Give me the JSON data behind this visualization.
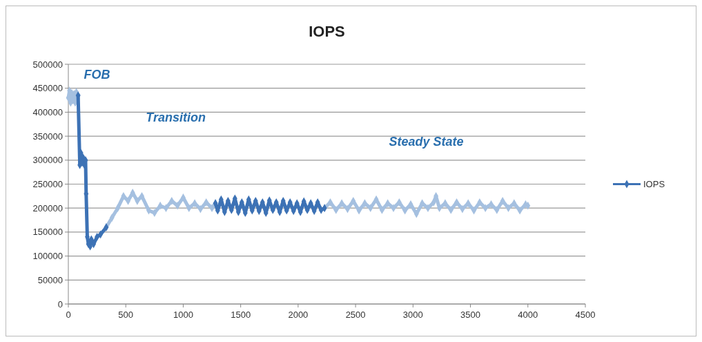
{
  "chart_data": {
    "type": "line",
    "title": "IOPS",
    "marker": "diamond",
    "line_style": "solid",
    "grid": "y",
    "legend": "right",
    "xlim": [
      0,
      4500
    ],
    "xticks": [
      0,
      500,
      1000,
      1500,
      2000,
      2500,
      3000,
      3500,
      4000,
      4500
    ],
    "ylim": [
      0,
      500000
    ],
    "yticks": [
      0,
      50000,
      100000,
      150000,
      200000,
      250000,
      300000,
      350000,
      400000,
      450000,
      500000
    ],
    "annotations": [
      "FOB",
      "Transition",
      "Steady State"
    ],
    "series": [
      {
        "color": "#a5c0e0",
        "x": [
          0,
          10,
          20,
          30,
          40,
          50,
          60,
          70,
          80,
          85,
          86,
          330,
          380,
          430,
          480,
          520,
          560,
          600,
          640,
          700,
          750,
          800,
          850,
          900,
          950,
          1000,
          1050,
          1100,
          1150,
          1200,
          1250,
          1280,
          1281,
          2230,
          2280,
          2330,
          2380,
          2430,
          2480,
          2530,
          2580,
          2630,
          2680,
          2730,
          2780,
          2830,
          2880,
          2930,
          2980,
          3030,
          3080,
          3130,
          3180,
          3200,
          3230,
          3280,
          3330,
          3380,
          3430,
          3480,
          3530,
          3580,
          3630,
          3680,
          3730,
          3780,
          3830,
          3880,
          3930,
          3980,
          4000
        ],
        "values": [
          430000,
          445000,
          420000,
          440000,
          425000,
          438000,
          420000,
          442000,
          428000,
          435000,
          null,
          160000,
          180000,
          200000,
          225000,
          215000,
          232000,
          215000,
          225000,
          195000,
          190000,
          205000,
          200000,
          215000,
          205000,
          222000,
          200000,
          210000,
          198000,
          212000,
          200000,
          210000,
          null,
          200000,
          212000,
          196000,
          210000,
          198000,
          215000,
          195000,
          210000,
          200000,
          218000,
          196000,
          210000,
          200000,
          212000,
          195000,
          208000,
          188000,
          210000,
          200000,
          212000,
          225000,
          200000,
          210000,
          196000,
          212000,
          198000,
          210000,
          195000,
          212000,
          200000,
          208000,
          196000,
          215000,
          200000,
          210000,
          195000,
          208000,
          205000
        ]
      },
      {
        "name": "IOPS",
        "color": "#3d72b5",
        "x": [
          85,
          100,
          110,
          120,
          130,
          140,
          150,
          155,
          165,
          175,
          190,
          200,
          220,
          250,
          280,
          330,
          331,
          1280,
          1300,
          1330,
          1360,
          1390,
          1420,
          1450,
          1480,
          1510,
          1540,
          1570,
          1600,
          1630,
          1660,
          1690,
          1720,
          1750,
          1780,
          1810,
          1840,
          1870,
          1900,
          1930,
          1960,
          1990,
          2020,
          2050,
          2080,
          2110,
          2140,
          2170,
          2200,
          2230
        ],
        "values": [
          435000,
          290000,
          315000,
          295000,
          305000,
          290000,
          300000,
          230000,
          140000,
          125000,
          120000,
          135000,
          125000,
          140000,
          145000,
          160000,
          null,
          210000,
          195000,
          218000,
          192000,
          215000,
          196000,
          220000,
          192000,
          212000,
          190000,
          218000,
          195000,
          215000,
          194000,
          212000,
          190000,
          216000,
          196000,
          212000,
          192000,
          215000,
          195000,
          212000,
          194000,
          210000,
          192000,
          214000,
          196000,
          210000,
          194000,
          212000,
          196000,
          200000
        ]
      }
    ]
  }
}
